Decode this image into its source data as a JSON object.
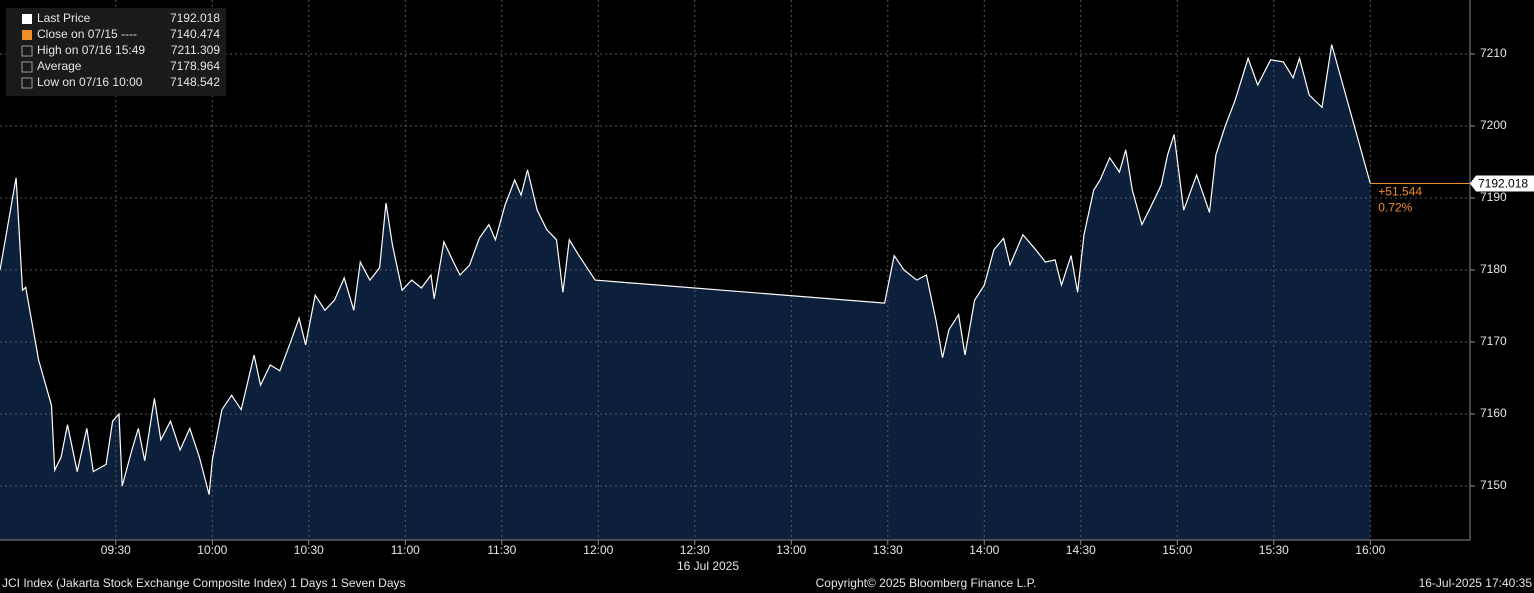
{
  "chart_data": {
    "type": "area",
    "series": [
      {
        "name": "Last Price",
        "color": "#ffffff",
        "fill": "#0c1f3b",
        "x": [
          534,
          539,
          541,
          542,
          546,
          550,
          551,
          553,
          555,
          558,
          561,
          563,
          567,
          569,
          571,
          572,
          575,
          577,
          579,
          582,
          584,
          587,
          590,
          593,
          596,
          599,
          600,
          603,
          606,
          609,
          613,
          615,
          618,
          621,
          624,
          627,
          629,
          632,
          635,
          638,
          641,
          644,
          646,
          649,
          652,
          654,
          656,
          659,
          662,
          665,
          668,
          669,
          672,
          675,
          677,
          680,
          683,
          686,
          688,
          691,
          694,
          696,
          698,
          701,
          704,
          707,
          709,
          711,
          714,
          719,
          809,
          812,
          815,
          819,
          822,
          825,
          827,
          829,
          832,
          834,
          837,
          840,
          843,
          846,
          848,
          852,
          856,
          859,
          862,
          864,
          867,
          869,
          871,
          874,
          876,
          879,
          882,
          884,
          886,
          889,
          892,
          895,
          897,
          899,
          902,
          906,
          910,
          912,
          915,
          918,
          922,
          925,
          929,
          933,
          936,
          938,
          941,
          945,
          948,
          960
        ],
        "values": [
          7180,
          7192.8,
          7177.2,
          7177.6,
          7167.5,
          7161.2,
          7152.2,
          7154,
          7158.5,
          7152,
          7158,
          7152,
          7153,
          7159,
          7160,
          7150,
          7155,
          7158,
          7153.5,
          7162.2,
          7156.4,
          7159,
          7155,
          7158,
          7154,
          7148.8,
          7153.6,
          7160.6,
          7162.6,
          7160.6,
          7168.2,
          7164,
          7166.8,
          7166,
          7169.6,
          7173.3,
          7169.6,
          7176.5,
          7174.4,
          7175.8,
          7178.9,
          7174.4,
          7181.1,
          7178.6,
          7180.3,
          7189.3,
          7183.5,
          7177.2,
          7178.6,
          7177.5,
          7179.3,
          7176,
          7183.9,
          7181.1,
          7179.3,
          7180.7,
          7184.4,
          7186.3,
          7184.2,
          7189,
          7192.5,
          7190.4,
          7193.9,
          7188.3,
          7185.6,
          7184.2,
          7176.9,
          7184.2,
          7182,
          7178.6,
          7175.4,
          7182,
          7180,
          7178.6,
          7179.3,
          7173,
          7167.8,
          7171.7,
          7173.8,
          7168.2,
          7175.8,
          7177.9,
          7182.8,
          7184.4,
          7180.7,
          7184.9,
          7182.8,
          7181.1,
          7181.4,
          7177.9,
          7182,
          7176.9,
          7184.9,
          7191.1,
          7192.5,
          7195.6,
          7193.6,
          7196.7,
          7191.1,
          7186.3,
          7189,
          7191.8,
          7196,
          7198.8,
          7188.3,
          7193.2,
          7188,
          7196,
          7200.1,
          7203.6,
          7209.4,
          7205.7,
          7209.2,
          7208.9,
          7206.7,
          7209.4,
          7204.3,
          7202.6,
          7211.3,
          7192.018
        ]
      }
    ],
    "last_value": 7192.018,
    "last_color": "#f28c28",
    "change": "+51.544",
    "change_pct": "0.72%",
    "stats": [
      {
        "label": "Close on 07/15 ----",
        "value": 7140.474,
        "color": "#f28c28"
      },
      {
        "label": "High on 07/16 15:49",
        "value": 7211.309
      },
      {
        "label": "Average",
        "value": 7178.964
      },
      {
        "label": "Low on 07/16 10:00",
        "value": 7148.542
      }
    ],
    "xlim": [
      534,
      991
    ],
    "xticks": [
      {
        "value": 570,
        "label": "09:30"
      },
      {
        "value": 600,
        "label": "10:00"
      },
      {
        "value": 630,
        "label": "10:30"
      },
      {
        "value": 660,
        "label": "11:00"
      },
      {
        "value": 690,
        "label": "11:30"
      },
      {
        "value": 720,
        "label": "12:00"
      },
      {
        "value": 750,
        "label": "12:30"
      },
      {
        "value": 780,
        "label": "13:00"
      },
      {
        "value": 810,
        "label": "13:30"
      },
      {
        "value": 840,
        "label": "14:00"
      },
      {
        "value": 870,
        "label": "14:30"
      },
      {
        "value": 900,
        "label": "15:00"
      },
      {
        "value": 930,
        "label": "15:30"
      },
      {
        "value": 960,
        "label": "16:00"
      }
    ],
    "date_label": "16 Jul 2025",
    "ylim": [
      7142.5,
      7217.5
    ],
    "yticks": [
      7150,
      7160,
      7170,
      7180,
      7190,
      7200,
      7210
    ],
    "grid": true
  },
  "footer": {
    "left": "JCI Index (Jakarta Stock Exchange Composite Index) 1 Days 1 Seven Days",
    "center": "Copyright© 2025 Bloomberg Finance L.P.",
    "right": "16-Jul-2025 17:40:35"
  }
}
